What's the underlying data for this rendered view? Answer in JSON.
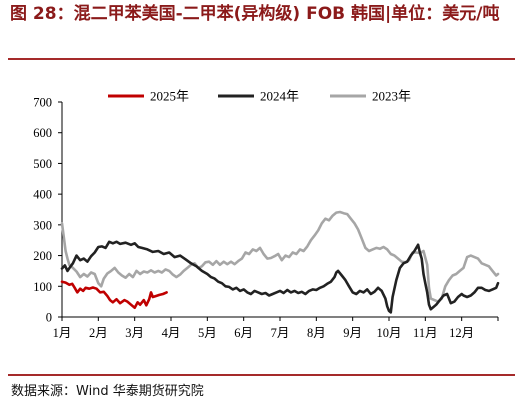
{
  "figure": {
    "title": "图 28：混二甲苯美国-二甲苯(异构级) FOB 韩国|单位：美元/吨",
    "source": "数据来源：Wind 华泰期货研究院"
  },
  "chart_data": {
    "type": "line",
    "title": "",
    "xlabel": "",
    "ylabel": "",
    "ylim": [
      0,
      700
    ],
    "yticks": [
      "0",
      "100",
      "200",
      "300",
      "400",
      "500",
      "600",
      "700"
    ],
    "xticks": [
      "1月",
      "2月",
      "3月",
      "4月",
      "5月",
      "6月",
      "7月",
      "8月",
      "9月",
      "10月",
      "11月",
      "12月"
    ],
    "x_unit": "month (1 = start of Jan, 13 = end of Dec)",
    "legend_position": "top",
    "grid": false,
    "series": [
      {
        "name": "2025年",
        "color": "#c00000",
        "points": [
          [
            1.0,
            115
          ],
          [
            1.1,
            112
          ],
          [
            1.2,
            105
          ],
          [
            1.28,
            108
          ],
          [
            1.35,
            95
          ],
          [
            1.42,
            80
          ],
          [
            1.5,
            92
          ],
          [
            1.58,
            85
          ],
          [
            1.65,
            95
          ],
          [
            1.75,
            92
          ],
          [
            1.85,
            96
          ],
          [
            1.95,
            92
          ],
          [
            2.05,
            80
          ],
          [
            2.15,
            82
          ],
          [
            2.25,
            68
          ],
          [
            2.32,
            55
          ],
          [
            2.4,
            48
          ],
          [
            2.5,
            58
          ],
          [
            2.6,
            45
          ],
          [
            2.72,
            55
          ],
          [
            2.8,
            50
          ],
          [
            2.9,
            40
          ],
          [
            3.0,
            30
          ],
          [
            3.08,
            48
          ],
          [
            3.15,
            40
          ],
          [
            3.25,
            55
          ],
          [
            3.32,
            38
          ],
          [
            3.4,
            58
          ],
          [
            3.45,
            80
          ],
          [
            3.5,
            65
          ],
          [
            3.58,
            68
          ],
          [
            3.68,
            72
          ],
          [
            3.78,
            75
          ],
          [
            3.88,
            80
          ]
        ]
      },
      {
        "name": "2024年",
        "color": "#222222",
        "points": [
          [
            1.0,
            158
          ],
          [
            1.08,
            168
          ],
          [
            1.15,
            150
          ],
          [
            1.22,
            162
          ],
          [
            1.3,
            175
          ],
          [
            1.4,
            200
          ],
          [
            1.5,
            185
          ],
          [
            1.6,
            190
          ],
          [
            1.7,
            180
          ],
          [
            1.8,
            198
          ],
          [
            1.9,
            210
          ],
          [
            2.0,
            228
          ],
          [
            2.1,
            230
          ],
          [
            2.2,
            225
          ],
          [
            2.3,
            245
          ],
          [
            2.4,
            240
          ],
          [
            2.5,
            245
          ],
          [
            2.6,
            238
          ],
          [
            2.75,
            242
          ],
          [
            2.9,
            235
          ],
          [
            3.0,
            240
          ],
          [
            3.1,
            228
          ],
          [
            3.2,
            225
          ],
          [
            3.35,
            220
          ],
          [
            3.5,
            212
          ],
          [
            3.65,
            215
          ],
          [
            3.8,
            205
          ],
          [
            3.95,
            210
          ],
          [
            4.1,
            195
          ],
          [
            4.25,
            200
          ],
          [
            4.4,
            188
          ],
          [
            4.55,
            175
          ],
          [
            4.7,
            165
          ],
          [
            4.85,
            150
          ],
          [
            5.0,
            140
          ],
          [
            5.1,
            130
          ],
          [
            5.2,
            125
          ],
          [
            5.3,
            115
          ],
          [
            5.4,
            110
          ],
          [
            5.5,
            100
          ],
          [
            5.6,
            98
          ],
          [
            5.7,
            90
          ],
          [
            5.8,
            95
          ],
          [
            5.9,
            85
          ],
          [
            6.0,
            90
          ],
          [
            6.1,
            80
          ],
          [
            6.2,
            75
          ],
          [
            6.3,
            85
          ],
          [
            6.4,
            80
          ],
          [
            6.5,
            75
          ],
          [
            6.6,
            78
          ],
          [
            6.7,
            70
          ],
          [
            6.8,
            75
          ],
          [
            6.9,
            80
          ],
          [
            7.0,
            85
          ],
          [
            7.1,
            78
          ],
          [
            7.2,
            88
          ],
          [
            7.3,
            80
          ],
          [
            7.4,
            85
          ],
          [
            7.5,
            78
          ],
          [
            7.6,
            82
          ],
          [
            7.7,
            75
          ],
          [
            7.8,
            85
          ],
          [
            7.9,
            90
          ],
          [
            8.0,
            88
          ],
          [
            8.1,
            95
          ],
          [
            8.2,
            100
          ],
          [
            8.3,
            108
          ],
          [
            8.4,
            115
          ],
          [
            8.5,
            130
          ],
          [
            8.55,
            145
          ],
          [
            8.6,
            150
          ],
          [
            8.7,
            135
          ],
          [
            8.8,
            120
          ],
          [
            8.9,
            100
          ],
          [
            9.0,
            80
          ],
          [
            9.1,
            75
          ],
          [
            9.2,
            85
          ],
          [
            9.3,
            80
          ],
          [
            9.4,
            90
          ],
          [
            9.5,
            75
          ],
          [
            9.6,
            82
          ],
          [
            9.7,
            95
          ],
          [
            9.8,
            85
          ],
          [
            9.9,
            60
          ],
          [
            9.95,
            35
          ],
          [
            10.0,
            20
          ],
          [
            10.05,
            15
          ],
          [
            10.1,
            65
          ],
          [
            10.2,
            120
          ],
          [
            10.3,
            160
          ],
          [
            10.4,
            175
          ],
          [
            10.5,
            180
          ],
          [
            10.6,
            200
          ],
          [
            10.7,
            215
          ],
          [
            10.8,
            235
          ],
          [
            10.85,
            210
          ],
          [
            10.9,
            190
          ],
          [
            10.95,
            140
          ],
          [
            11.0,
            110
          ],
          [
            11.05,
            80
          ],
          [
            11.1,
            40
          ],
          [
            11.15,
            25
          ],
          [
            11.2,
            30
          ],
          [
            11.3,
            40
          ],
          [
            11.4,
            55
          ],
          [
            11.5,
            70
          ],
          [
            11.6,
            75
          ],
          [
            11.65,
            60
          ],
          [
            11.7,
            45
          ],
          [
            11.8,
            50
          ],
          [
            11.9,
            65
          ],
          [
            12.0,
            75
          ],
          [
            12.05,
            70
          ],
          [
            12.15,
            65
          ],
          [
            12.25,
            70
          ],
          [
            12.35,
            80
          ],
          [
            12.45,
            95
          ],
          [
            12.55,
            95
          ],
          [
            12.65,
            88
          ],
          [
            12.75,
            85
          ],
          [
            12.85,
            90
          ],
          [
            12.95,
            95
          ],
          [
            13.0,
            110
          ]
        ]
      },
      {
        "name": "2023年",
        "color": "#a6a6a6",
        "points": [
          [
            1.0,
            305
          ],
          [
            1.05,
            260
          ],
          [
            1.1,
            215
          ],
          [
            1.15,
            190
          ],
          [
            1.2,
            170
          ],
          [
            1.3,
            160
          ],
          [
            1.4,
            148
          ],
          [
            1.5,
            130
          ],
          [
            1.6,
            140
          ],
          [
            1.7,
            132
          ],
          [
            1.8,
            145
          ],
          [
            1.9,
            140
          ],
          [
            2.0,
            110
          ],
          [
            2.08,
            100
          ],
          [
            2.15,
            125
          ],
          [
            2.25,
            142
          ],
          [
            2.35,
            150
          ],
          [
            2.45,
            160
          ],
          [
            2.55,
            145
          ],
          [
            2.65,
            135
          ],
          [
            2.75,
            128
          ],
          [
            2.85,
            140
          ],
          [
            2.95,
            130
          ],
          [
            3.05,
            150
          ],
          [
            3.15,
            140
          ],
          [
            3.25,
            148
          ],
          [
            3.35,
            145
          ],
          [
            3.45,
            152
          ],
          [
            3.55,
            145
          ],
          [
            3.65,
            150
          ],
          [
            3.75,
            145
          ],
          [
            3.85,
            155
          ],
          [
            3.95,
            150
          ],
          [
            4.05,
            138
          ],
          [
            4.15,
            130
          ],
          [
            4.25,
            138
          ],
          [
            4.35,
            150
          ],
          [
            4.45,
            160
          ],
          [
            4.55,
            170
          ],
          [
            4.65,
            175
          ],
          [
            4.75,
            160
          ],
          [
            4.85,
            165
          ],
          [
            4.95,
            178
          ],
          [
            5.05,
            180
          ],
          [
            5.15,
            170
          ],
          [
            5.25,
            182
          ],
          [
            5.35,
            170
          ],
          [
            5.45,
            180
          ],
          [
            5.55,
            172
          ],
          [
            5.65,
            180
          ],
          [
            5.75,
            172
          ],
          [
            5.85,
            182
          ],
          [
            5.95,
            190
          ],
          [
            6.05,
            210
          ],
          [
            6.15,
            205
          ],
          [
            6.25,
            220
          ],
          [
            6.35,
            215
          ],
          [
            6.45,
            225
          ],
          [
            6.55,
            205
          ],
          [
            6.65,
            190
          ],
          [
            6.75,
            192
          ],
          [
            6.85,
            198
          ],
          [
            6.95,
            205
          ],
          [
            7.05,
            185
          ],
          [
            7.15,
            200
          ],
          [
            7.25,
            195
          ],
          [
            7.35,
            210
          ],
          [
            7.45,
            205
          ],
          [
            7.55,
            220
          ],
          [
            7.65,
            215
          ],
          [
            7.75,
            230
          ],
          [
            7.85,
            250
          ],
          [
            7.95,
            265
          ],
          [
            8.05,
            282
          ],
          [
            8.15,
            305
          ],
          [
            8.25,
            320
          ],
          [
            8.35,
            315
          ],
          [
            8.45,
            330
          ],
          [
            8.55,
            340
          ],
          [
            8.65,
            342
          ],
          [
            8.75,
            338
          ],
          [
            8.85,
            335
          ],
          [
            8.95,
            320
          ],
          [
            9.05,
            305
          ],
          [
            9.15,
            285
          ],
          [
            9.25,
            255
          ],
          [
            9.35,
            225
          ],
          [
            9.45,
            215
          ],
          [
            9.55,
            220
          ],
          [
            9.65,
            225
          ],
          [
            9.75,
            222
          ],
          [
            9.85,
            228
          ],
          [
            9.95,
            220
          ],
          [
            10.05,
            205
          ],
          [
            10.15,
            200
          ],
          [
            10.25,
            190
          ],
          [
            10.35,
            180
          ],
          [
            10.45,
            178
          ],
          [
            10.55,
            185
          ],
          [
            10.65,
            210
          ],
          [
            10.75,
            210
          ],
          [
            10.85,
            208
          ],
          [
            10.95,
            215
          ],
          [
            11.05,
            170
          ],
          [
            11.1,
            95
          ],
          [
            11.15,
            60
          ],
          [
            11.25,
            55
          ],
          [
            11.35,
            50
          ],
          [
            11.45,
            60
          ],
          [
            11.55,
            100
          ],
          [
            11.65,
            120
          ],
          [
            11.75,
            135
          ],
          [
            11.85,
            140
          ],
          [
            11.95,
            150
          ],
          [
            12.05,
            160
          ],
          [
            12.15,
            195
          ],
          [
            12.25,
            200
          ],
          [
            12.35,
            195
          ],
          [
            12.45,
            190
          ],
          [
            12.55,
            175
          ],
          [
            12.65,
            170
          ],
          [
            12.75,
            165
          ],
          [
            12.85,
            150
          ],
          [
            12.95,
            135
          ],
          [
            13.0,
            140
          ]
        ]
      }
    ]
  }
}
